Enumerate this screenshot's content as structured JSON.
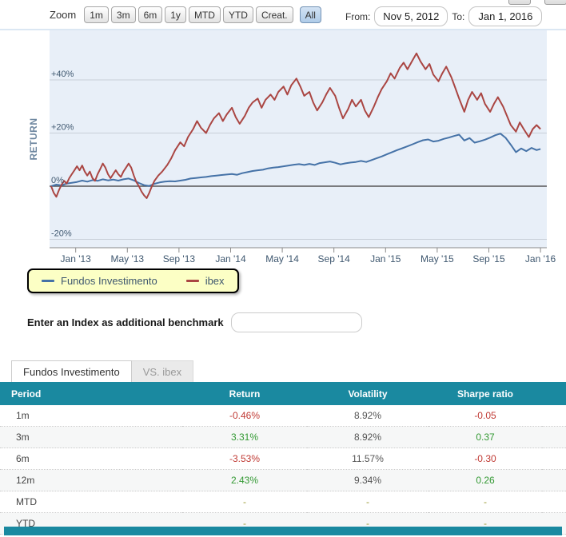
{
  "toolbar": {
    "zoom_label": "Zoom",
    "buttons": [
      "1m",
      "3m",
      "6m",
      "1y",
      "MTD",
      "YTD",
      "Creat.",
      "All"
    ],
    "active_button": "All",
    "from_label": "From:",
    "from_value": "Nov 5, 2012",
    "to_label": "To:",
    "to_value": "Jan 1, 2016"
  },
  "benchmark": {
    "label": "Enter an Index as additional benchmark",
    "input_value": ""
  },
  "tabs": [
    {
      "label": "Fundos Investimento",
      "active": true
    },
    {
      "label": "VS. ibex",
      "active": false
    }
  ],
  "table": {
    "headers": [
      "Period",
      "Return",
      "Volatility",
      "Sharpe ratio"
    ],
    "rows": [
      {
        "period": "1m",
        "return": "-0.46%",
        "volatility": "8.92%",
        "sharpe": "-0.05"
      },
      {
        "period": "3m",
        "return": "3.31%",
        "volatility": "8.92%",
        "sharpe": "0.37"
      },
      {
        "period": "6m",
        "return": "-3.53%",
        "volatility": "11.57%",
        "sharpe": "-0.30"
      },
      {
        "period": "12m",
        "return": "2.43%",
        "volatility": "9.34%",
        "sharpe": "0.26"
      },
      {
        "period": "MTD",
        "return": "-",
        "volatility": "-",
        "sharpe": "-"
      },
      {
        "period": "YTD",
        "return": "-",
        "volatility": "-",
        "sharpe": "-"
      }
    ]
  },
  "value_colors": {
    "negative": "#C03A34",
    "positive": "#339933",
    "dash": "#9A9A33",
    "plain": "#555555"
  },
  "chart_data": {
    "type": "line",
    "title": "",
    "y_axis": {
      "title": "RETURN",
      "ticks": [
        {
          "v": 40,
          "label": "+40%"
        },
        {
          "v": 20,
          "label": "+20%"
        },
        {
          "v": 0,
          "label": "0%"
        },
        {
          "v": -20,
          "label": "-20%"
        }
      ],
      "range": [
        -23,
        52
      ]
    },
    "x_axis": {
      "from": "Nov 5, 2012",
      "to": "Jan 1, 2016",
      "range_months": [
        0,
        37.9
      ],
      "ticks": [
        {
          "t": 1.9,
          "label": "Jan '13"
        },
        {
          "t": 5.9,
          "label": "May '13"
        },
        {
          "t": 9.9,
          "label": "Sep '13"
        },
        {
          "t": 13.9,
          "label": "Jan '14"
        },
        {
          "t": 17.9,
          "label": "May '14"
        },
        {
          "t": 21.9,
          "label": "Sep '14"
        },
        {
          "t": 25.9,
          "label": "Jan '15"
        },
        {
          "t": 29.9,
          "label": "May '15"
        },
        {
          "t": 33.9,
          "label": "Sep '15"
        },
        {
          "t": 37.9,
          "label": "Jan '16"
        }
      ]
    },
    "series": [
      {
        "name": "Fundos Investimento",
        "color": "#4572A7",
        "points": [
          [
            0,
            0
          ],
          [
            0.4,
            0.6
          ],
          [
            0.8,
            0.3
          ],
          [
            1.2,
            1
          ],
          [
            1.6,
            1.3
          ],
          [
            2,
            1.6
          ],
          [
            2.4,
            2.1
          ],
          [
            2.8,
            1.7
          ],
          [
            3.2,
            2.3
          ],
          [
            3.6,
            2
          ],
          [
            4,
            2.6
          ],
          [
            4.4,
            2.2
          ],
          [
            4.8,
            2.5
          ],
          [
            5.2,
            2.1
          ],
          [
            5.6,
            2.6
          ],
          [
            6,
            2.9
          ],
          [
            6.4,
            2.2
          ],
          [
            6.8,
            1.2
          ],
          [
            7.2,
            0.4
          ],
          [
            7.6,
            0.1
          ],
          [
            8,
            0.9
          ],
          [
            8.4,
            1.4
          ],
          [
            8.8,
            1.7
          ],
          [
            9.2,
            1.9
          ],
          [
            9.6,
            1.8
          ],
          [
            10,
            2.1
          ],
          [
            10.4,
            2.4
          ],
          [
            10.8,
            2.9
          ],
          [
            11.2,
            3.1
          ],
          [
            11.6,
            3.3
          ],
          [
            12,
            3.5
          ],
          [
            12.4,
            3.8
          ],
          [
            12.8,
            4
          ],
          [
            13.2,
            4.2
          ],
          [
            13.6,
            4.4
          ],
          [
            14,
            4.6
          ],
          [
            14.4,
            4.3
          ],
          [
            14.8,
            4.9
          ],
          [
            15.2,
            5.3
          ],
          [
            15.6,
            5.7
          ],
          [
            16,
            6
          ],
          [
            16.4,
            6.2
          ],
          [
            16.8,
            6.7
          ],
          [
            17.2,
            7
          ],
          [
            17.6,
            7.2
          ],
          [
            18,
            7.5
          ],
          [
            18.4,
            7.8
          ],
          [
            18.8,
            8.1
          ],
          [
            19.2,
            8.3
          ],
          [
            19.6,
            8
          ],
          [
            20,
            8.4
          ],
          [
            20.4,
            8
          ],
          [
            20.8,
            8.7
          ],
          [
            21.2,
            9
          ],
          [
            21.6,
            9.3
          ],
          [
            22,
            8.8
          ],
          [
            22.4,
            8.2
          ],
          [
            22.8,
            8.6
          ],
          [
            23.2,
            8.9
          ],
          [
            23.6,
            9.1
          ],
          [
            24,
            9.5
          ],
          [
            24.4,
            9.1
          ],
          [
            24.8,
            9.8
          ],
          [
            25.2,
            10.5
          ],
          [
            25.6,
            11.2
          ],
          [
            26,
            12
          ],
          [
            26.4,
            12.8
          ],
          [
            26.8,
            13.6
          ],
          [
            27.2,
            14.3
          ],
          [
            27.6,
            15
          ],
          [
            28,
            15.8
          ],
          [
            28.4,
            16.6
          ],
          [
            28.8,
            17.3
          ],
          [
            29.2,
            17.6
          ],
          [
            29.6,
            16.8
          ],
          [
            30,
            17.1
          ],
          [
            30.4,
            17.8
          ],
          [
            30.8,
            18.3
          ],
          [
            31.2,
            18.9
          ],
          [
            31.6,
            19.4
          ],
          [
            32,
            17.2
          ],
          [
            32.4,
            18.1
          ],
          [
            32.8,
            16.4
          ],
          [
            33.2,
            16.9
          ],
          [
            33.6,
            17.5
          ],
          [
            34,
            18.3
          ],
          [
            34.4,
            19.2
          ],
          [
            34.8,
            19.8
          ],
          [
            35.2,
            18.2
          ],
          [
            35.6,
            15.6
          ],
          [
            36,
            12.8
          ],
          [
            36.4,
            14.2
          ],
          [
            36.8,
            13.2
          ],
          [
            37.2,
            14.4
          ],
          [
            37.6,
            13.6
          ],
          [
            37.9,
            14
          ]
        ]
      },
      {
        "name": "ibex",
        "color": "#AA4643",
        "points": [
          [
            0,
            0
          ],
          [
            0.2,
            -2.5
          ],
          [
            0.4,
            -4
          ],
          [
            0.6,
            -1.5
          ],
          [
            0.8,
            0.5
          ],
          [
            1,
            2
          ],
          [
            1.2,
            1
          ],
          [
            1.4,
            3
          ],
          [
            1.6,
            4.5
          ],
          [
            1.8,
            6
          ],
          [
            2,
            7.5
          ],
          [
            2.2,
            6
          ],
          [
            2.4,
            7.8
          ],
          [
            2.6,
            5.5
          ],
          [
            2.8,
            4
          ],
          [
            3,
            5.5
          ],
          [
            3.2,
            3
          ],
          [
            3.4,
            2
          ],
          [
            3.6,
            4.5
          ],
          [
            3.8,
            6.5
          ],
          [
            4,
            8.5
          ],
          [
            4.2,
            7
          ],
          [
            4.4,
            4.5
          ],
          [
            4.6,
            3
          ],
          [
            4.8,
            4.5
          ],
          [
            5,
            6
          ],
          [
            5.2,
            4.5
          ],
          [
            5.4,
            3.5
          ],
          [
            5.6,
            5.5
          ],
          [
            5.8,
            7
          ],
          [
            6,
            8.5
          ],
          [
            6.2,
            7
          ],
          [
            6.4,
            4
          ],
          [
            6.6,
            1.5
          ],
          [
            6.8,
            0
          ],
          [
            7,
            -2
          ],
          [
            7.2,
            -3.5
          ],
          [
            7.4,
            -4.5
          ],
          [
            7.6,
            -2.5
          ],
          [
            7.8,
            0
          ],
          [
            8,
            2
          ],
          [
            8.3,
            4
          ],
          [
            8.6,
            5.5
          ],
          [
            9,
            8
          ],
          [
            9.3,
            10.5
          ],
          [
            9.6,
            13.5
          ],
          [
            10,
            16.5
          ],
          [
            10.3,
            15
          ],
          [
            10.6,
            18.5
          ],
          [
            11,
            21.5
          ],
          [
            11.3,
            24.5
          ],
          [
            11.6,
            22
          ],
          [
            12,
            20
          ],
          [
            12.3,
            23
          ],
          [
            12.6,
            25.5
          ],
          [
            13,
            27.5
          ],
          [
            13.3,
            24.5
          ],
          [
            13.6,
            27
          ],
          [
            14,
            29.5
          ],
          [
            14.3,
            26
          ],
          [
            14.6,
            23.5
          ],
          [
            15,
            26.5
          ],
          [
            15.3,
            29.5
          ],
          [
            15.6,
            31.5
          ],
          [
            16,
            33
          ],
          [
            16.3,
            29.5
          ],
          [
            16.6,
            32.5
          ],
          [
            17,
            34.5
          ],
          [
            17.3,
            32.5
          ],
          [
            17.6,
            35.5
          ],
          [
            18,
            37.5
          ],
          [
            18.3,
            34.5
          ],
          [
            18.6,
            38
          ],
          [
            19,
            40.5
          ],
          [
            19.3,
            37.5
          ],
          [
            19.6,
            34
          ],
          [
            20,
            35.5
          ],
          [
            20.3,
            31.5
          ],
          [
            20.6,
            28.5
          ],
          [
            21,
            31.5
          ],
          [
            21.3,
            34.5
          ],
          [
            21.6,
            37
          ],
          [
            22,
            34
          ],
          [
            22.3,
            29.5
          ],
          [
            22.6,
            25.5
          ],
          [
            23,
            29
          ],
          [
            23.3,
            32.5
          ],
          [
            23.6,
            30
          ],
          [
            24,
            32.5
          ],
          [
            24.3,
            28.5
          ],
          [
            24.6,
            26
          ],
          [
            25,
            30
          ],
          [
            25.3,
            33.5
          ],
          [
            25.6,
            36.5
          ],
          [
            26,
            39.5
          ],
          [
            26.3,
            42.5
          ],
          [
            26.6,
            40.5
          ],
          [
            27,
            44.5
          ],
          [
            27.3,
            46.5
          ],
          [
            27.6,
            44
          ],
          [
            28,
            47.5
          ],
          [
            28.3,
            50
          ],
          [
            28.6,
            47
          ],
          [
            29,
            44
          ],
          [
            29.3,
            46
          ],
          [
            29.6,
            42
          ],
          [
            30,
            39.5
          ],
          [
            30.3,
            42.5
          ],
          [
            30.6,
            45
          ],
          [
            31,
            41
          ],
          [
            31.3,
            37
          ],
          [
            31.6,
            33
          ],
          [
            32,
            28
          ],
          [
            32.3,
            32.5
          ],
          [
            32.6,
            35.5
          ],
          [
            33,
            32.5
          ],
          [
            33.3,
            35
          ],
          [
            33.6,
            31
          ],
          [
            34,
            28
          ],
          [
            34.3,
            31
          ],
          [
            34.6,
            33.5
          ],
          [
            35,
            30
          ],
          [
            35.3,
            26.5
          ],
          [
            35.6,
            23
          ],
          [
            36,
            20.5
          ],
          [
            36.3,
            24
          ],
          [
            36.6,
            21.5
          ],
          [
            37,
            18.5
          ],
          [
            37.3,
            21.5
          ],
          [
            37.6,
            23
          ],
          [
            37.9,
            21.5
          ]
        ]
      }
    ],
    "plot_bg_color": "#E8EFF8",
    "grid_color": "#C9CFD8",
    "zero_line_color": "#555555",
    "axis_line_color": "#8A8A8A",
    "axis_text_color": "#3E576F",
    "y_title_color": "#6D869F",
    "legend_bg_color": "#FCFFC5"
  }
}
